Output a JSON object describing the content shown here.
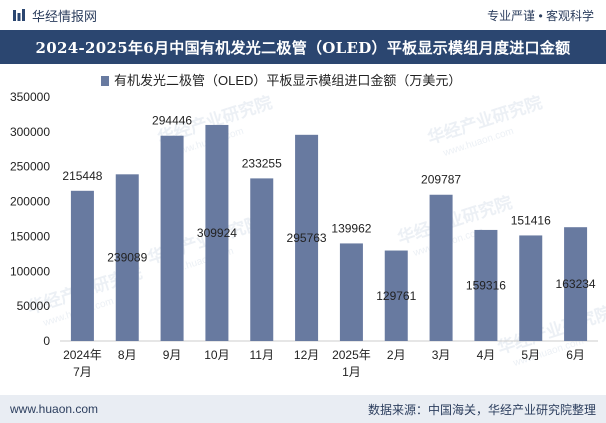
{
  "header": {
    "brand": "华经情报网",
    "tagline": "专业严谨 • 客观科学",
    "logo_icon": "bar-logo-icon"
  },
  "title": "2024-2025年6月中国有机发光二极管（OLED）平板显示模组月度进口金额",
  "watermark": {
    "text": "华经产业研究院",
    "url": "www.huaon.com"
  },
  "footer": {
    "site": "www.huaon.com",
    "source": "数据来源：中国海关，华经产业研究院整理"
  },
  "colors": {
    "bar": "#687aa0",
    "title_bg": "#2b4670",
    "footer_bg": "#e9edf3"
  },
  "chart_data": {
    "type": "bar",
    "categories": [
      [
        "2024年",
        "7月"
      ],
      [
        "8月"
      ],
      [
        "9月"
      ],
      [
        "10月"
      ],
      [
        "11月"
      ],
      [
        "12月"
      ],
      [
        "2025年",
        "1月"
      ],
      [
        "2月"
      ],
      [
        "3月"
      ],
      [
        "4月"
      ],
      [
        "5月"
      ],
      [
        "6月"
      ]
    ],
    "series": [
      {
        "name": "有机发光二极管（OLED）平板显示模组进口金额（万美元）",
        "values": [
          215448,
          239089,
          294446,
          309924,
          233255,
          295763,
          139962,
          129761,
          209787,
          159316,
          151416,
          163234
        ]
      }
    ],
    "label_position": [
      "top",
      "inside",
      "top",
      "inside",
      "top",
      "inside",
      "top",
      "inside",
      "top",
      "inside",
      "top",
      "inside"
    ],
    "yticks": [
      0,
      50000,
      100000,
      150000,
      200000,
      250000,
      300000,
      350000
    ],
    "ylim": [
      0,
      350000
    ],
    "legend_position": "top-center",
    "grid": false
  }
}
